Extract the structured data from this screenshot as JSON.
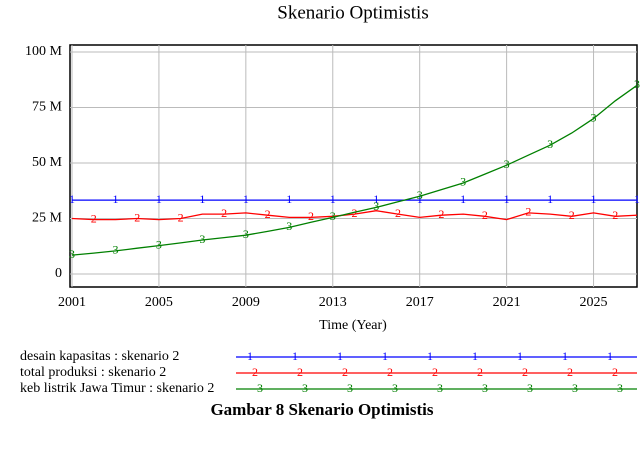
{
  "chart_data": {
    "type": "line",
    "title": "Skenario Optimistis",
    "xlabel": "Time (Year)",
    "caption": "Gambar 8 Skenario Optimistis",
    "x": [
      2001,
      2002,
      2003,
      2004,
      2005,
      2006,
      2007,
      2008,
      2009,
      2010,
      2011,
      2012,
      2013,
      2014,
      2015,
      2016,
      2017,
      2018,
      2019,
      2020,
      2021,
      2022,
      2023,
      2024,
      2025,
      2026,
      2027
    ],
    "xlim": [
      2001,
      2027
    ],
    "xticks": [
      2001,
      2005,
      2009,
      2013,
      2017,
      2021,
      2025
    ],
    "ylim": [
      0,
      100
    ],
    "yticks": [
      0,
      {
        "value": 25,
        "label": "25 M"
      },
      {
        "value": 50,
        "label": "50 M"
      },
      {
        "value": 75,
        "label": "75 M"
      },
      {
        "value": 100,
        "label": "100 M"
      }
    ],
    "grid": true,
    "series": [
      {
        "name": "desain kapasitas : skenario 2",
        "marker": "1",
        "color": "#0000ff",
        "values": [
          33.3,
          33.3,
          33.3,
          33.3,
          33.3,
          33.3,
          33.3,
          33.3,
          33.3,
          33.3,
          33.3,
          33.3,
          33.3,
          33.3,
          33.3,
          33.3,
          33.3,
          33.3,
          33.3,
          33.3,
          33.3,
          33.3,
          33.3,
          33.3,
          33.3,
          33.3,
          33.3
        ]
      },
      {
        "name": "total produksi : skenario 2",
        "marker": "2",
        "color": "#ff0000",
        "values": [
          25,
          24.5,
          24.5,
          25,
          24.5,
          25,
          27,
          27,
          27.5,
          26.5,
          25.5,
          25.5,
          26,
          27,
          28.5,
          27,
          25.5,
          26.5,
          27,
          26,
          24.5,
          27.5,
          27,
          26,
          27.5,
          26,
          26.5
        ]
      },
      {
        "name": "keb listrik Jawa Timur : skenario 2",
        "marker": "3",
        "color": "#008000",
        "values": [
          8.5,
          9.4,
          10.4,
          11.6,
          12.8,
          14,
          15.3,
          16.4,
          17.5,
          19.2,
          21,
          23.3,
          25.5,
          27.8,
          30,
          32.5,
          35,
          38,
          41,
          45,
          49,
          53.5,
          58,
          63.5,
          70,
          78,
          85
        ]
      }
    ]
  }
}
